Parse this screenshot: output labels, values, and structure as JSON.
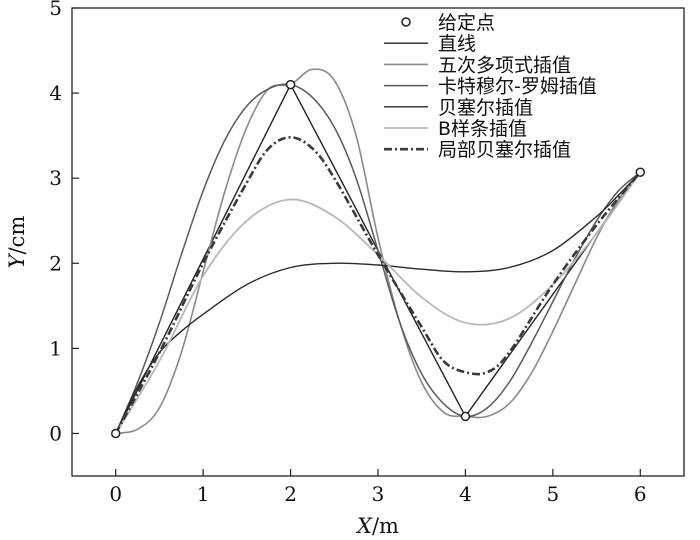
{
  "chart_data": {
    "type": "line",
    "title": "",
    "xlabel": {
      "var": "X",
      "unit": "/m"
    },
    "ylabel": {
      "var": "Y",
      "unit": "/cm"
    },
    "xlim": [
      -0.5,
      6.5
    ],
    "ylim": [
      -0.5,
      5
    ],
    "xticks": [
      "0",
      "1",
      "2",
      "3",
      "4",
      "5",
      "6"
    ],
    "yticks": [
      "0",
      "1",
      "2",
      "3",
      "4",
      "5"
    ],
    "grid": false,
    "legend_position": "top-right",
    "points": {
      "name": "给定点",
      "x": [
        0,
        2,
        4,
        6
      ],
      "y": [
        0,
        4.1,
        0.2,
        3.07
      ]
    },
    "series": [
      {
        "name": "直线",
        "color": "#222222",
        "width": 1.4,
        "dash": "",
        "x": [
          0,
          2,
          4,
          6
        ],
        "y": [
          0,
          4.1,
          0.2,
          3.07
        ]
      },
      {
        "name": "五次多项式插值",
        "color": "#8a8a8a",
        "width": 1.6,
        "dash": "",
        "x": [
          0,
          0.25,
          0.5,
          0.75,
          1,
          1.25,
          1.5,
          1.75,
          2,
          2.25,
          2.5,
          2.75,
          3,
          3.25,
          3.5,
          3.75,
          4,
          4.25,
          4.5,
          4.75,
          5,
          5.25,
          5.5,
          5.75,
          6
        ],
        "y": [
          0,
          0.05,
          0.3,
          0.95,
          1.9,
          2.85,
          3.6,
          4.05,
          4.1,
          4.28,
          4.15,
          3.5,
          2.3,
          1.3,
          0.6,
          0.25,
          0.2,
          0.2,
          0.35,
          0.7,
          1.2,
          1.75,
          2.3,
          2.75,
          3.07
        ]
      },
      {
        "name": "卡特穆尔-罗姆插值",
        "color": "#5a5a5a",
        "width": 1.5,
        "dash": "",
        "x": [
          0,
          0.25,
          0.5,
          0.75,
          1,
          1.25,
          1.5,
          1.75,
          2,
          2.25,
          2.5,
          2.75,
          3,
          3.25,
          3.5,
          3.75,
          4,
          4.25,
          4.5,
          4.75,
          5,
          5.25,
          5.5,
          5.75,
          6
        ],
        "y": [
          0,
          0.6,
          1.3,
          2.1,
          2.85,
          3.45,
          3.85,
          4.05,
          4.1,
          3.95,
          3.6,
          3.0,
          2.15,
          1.3,
          0.7,
          0.35,
          0.2,
          0.3,
          0.6,
          1.05,
          1.55,
          2.05,
          2.5,
          2.85,
          3.07
        ]
      },
      {
        "name": "贝塞尔插值",
        "color": "#2a2a2a",
        "width": 1.4,
        "dash": "",
        "x": [
          0,
          0.25,
          0.5,
          0.75,
          1,
          1.5,
          2,
          2.5,
          3,
          3.5,
          4,
          4.5,
          5,
          5.5,
          5.75,
          6
        ],
        "y": [
          0,
          0.55,
          0.95,
          1.2,
          1.4,
          1.75,
          1.95,
          2.0,
          1.98,
          1.93,
          1.9,
          1.95,
          2.15,
          2.55,
          2.8,
          3.07
        ]
      },
      {
        "name": "B样条插值",
        "color": "#b8b8b8",
        "width": 1.8,
        "dash": "",
        "x": [
          0,
          0.5,
          1,
          1.5,
          2,
          2.5,
          3,
          3.5,
          4,
          4.5,
          5,
          5.5,
          6
        ],
        "y": [
          0,
          0.85,
          1.85,
          2.5,
          2.75,
          2.55,
          2.1,
          1.6,
          1.3,
          1.35,
          1.75,
          2.35,
          3.07
        ]
      },
      {
        "name": "局部贝塞尔插值",
        "color": "#3a3a3a",
        "width": 2.6,
        "dash": "8,3,2,3",
        "x": [
          0,
          0.5,
          1,
          1.5,
          1.75,
          2,
          2.25,
          2.5,
          3,
          3.5,
          3.75,
          4,
          4.25,
          4.5,
          5,
          5.5,
          6
        ],
        "y": [
          0,
          0.95,
          2.0,
          2.95,
          3.35,
          3.48,
          3.35,
          3.0,
          2.1,
          1.25,
          0.85,
          0.72,
          0.72,
          0.95,
          1.75,
          2.45,
          3.07
        ]
      }
    ]
  }
}
